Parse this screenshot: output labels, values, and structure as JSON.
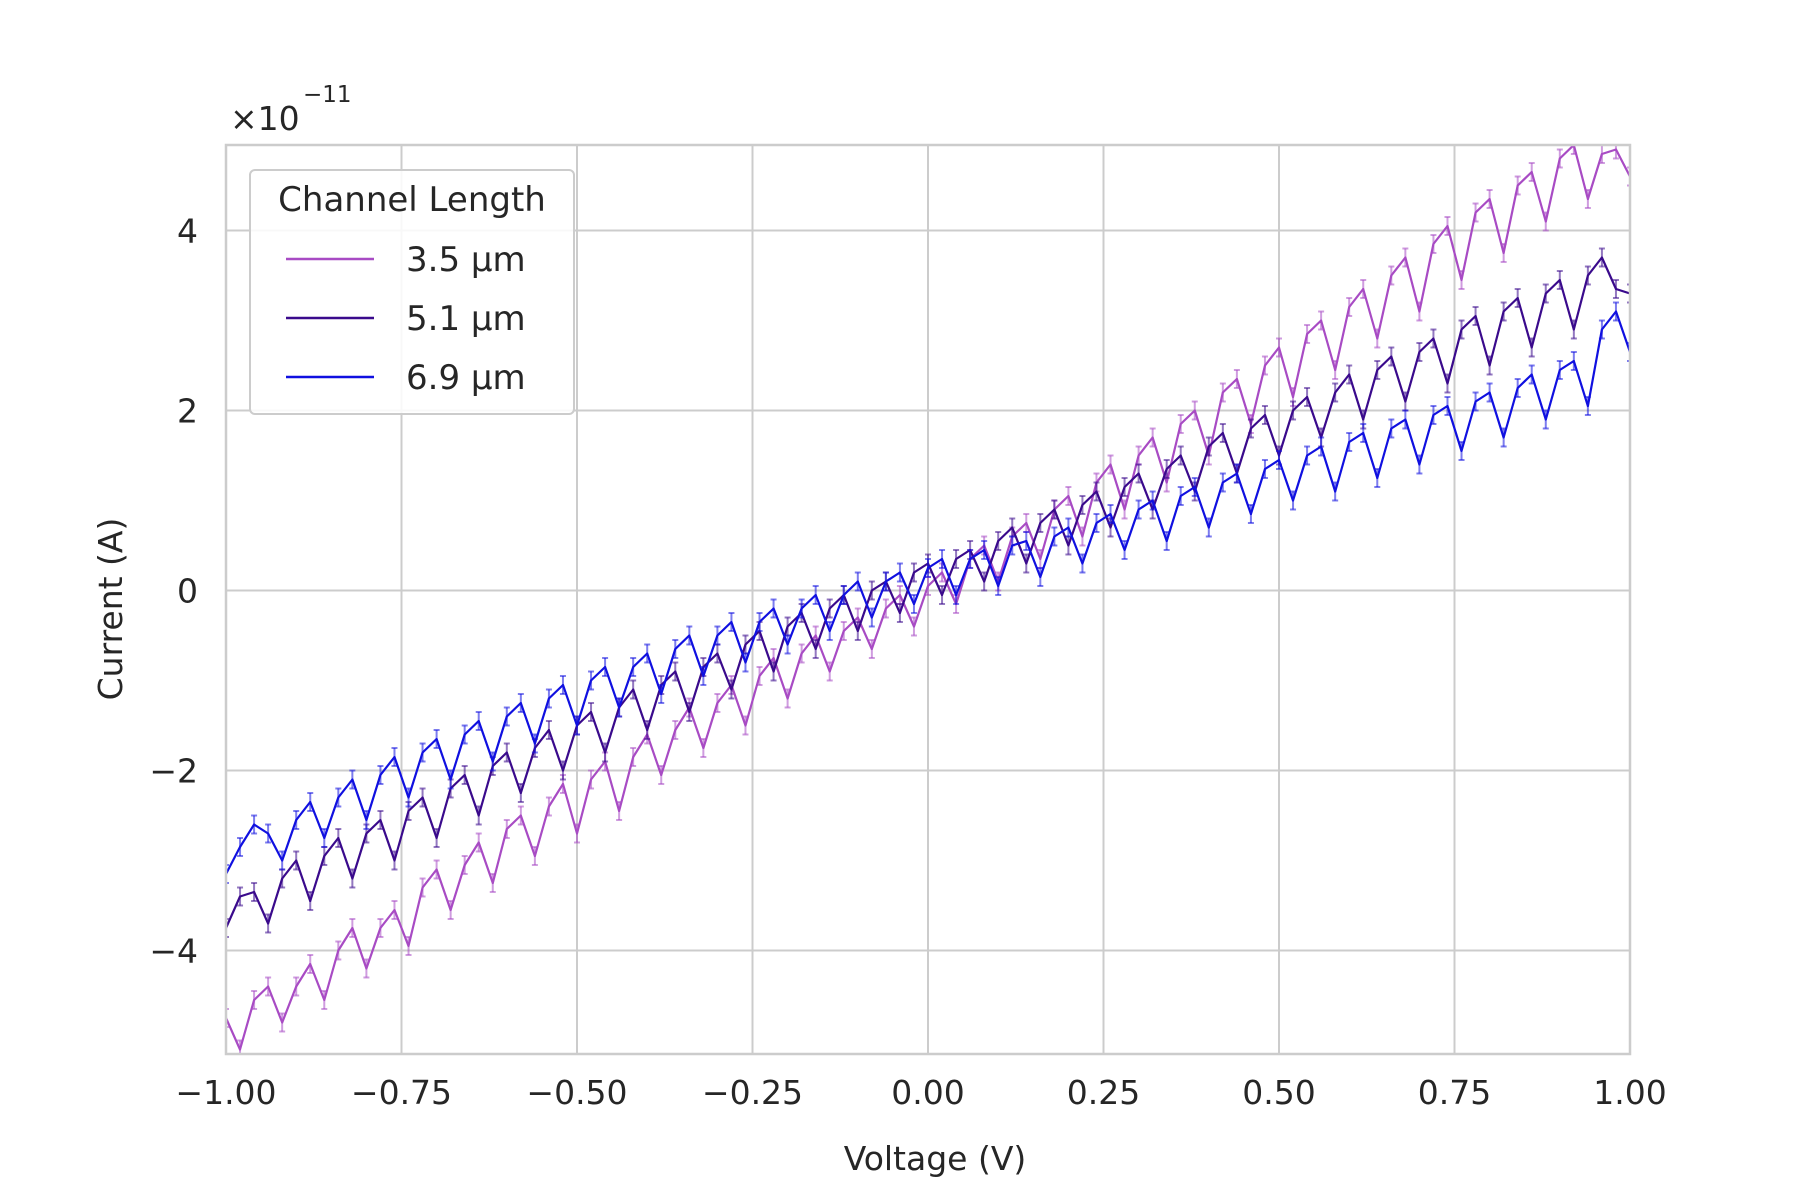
{
  "chart_data": {
    "type": "line",
    "xlabel": "Voltage (V)",
    "ylabel": "Current (A)",
    "xlim": [
      -1.0,
      1.0
    ],
    "ylim": [
      -5.15,
      4.95
    ],
    "y_scale_label": "×10",
    "y_scale_exponent": "−11",
    "grid": true,
    "legend": {
      "title": "Channel Length",
      "placement": "top-left"
    },
    "x_ticks": [
      {
        "value": -1.0,
        "label": "−1.00"
      },
      {
        "value": -0.75,
        "label": "−0.75"
      },
      {
        "value": -0.5,
        "label": "−0.50"
      },
      {
        "value": -0.25,
        "label": "−0.25"
      },
      {
        "value": 0.0,
        "label": "0.00"
      },
      {
        "value": 0.25,
        "label": "0.25"
      },
      {
        "value": 0.5,
        "label": "0.50"
      },
      {
        "value": 0.75,
        "label": "0.75"
      },
      {
        "value": 1.0,
        "label": "1.00"
      }
    ],
    "y_ticks": [
      {
        "value": -4,
        "label": "−4"
      },
      {
        "value": -2,
        "label": "−2"
      },
      {
        "value": 0,
        "label": "0"
      },
      {
        "value": 2,
        "label": "2"
      },
      {
        "value": 4,
        "label": "4"
      }
    ],
    "series": [
      {
        "name": "3.5 μm",
        "color": "#a84bc4",
        "points": [
          [
            -1.0,
            -4.75
          ],
          [
            -0.98,
            -5.1
          ],
          [
            -0.96,
            -4.55
          ],
          [
            -0.94,
            -4.4
          ],
          [
            -0.92,
            -4.8
          ],
          [
            -0.9,
            -4.4
          ],
          [
            -0.88,
            -4.15
          ],
          [
            -0.86,
            -4.55
          ],
          [
            -0.84,
            -4.0
          ],
          [
            -0.82,
            -3.75
          ],
          [
            -0.8,
            -4.2
          ],
          [
            -0.78,
            -3.75
          ],
          [
            -0.76,
            -3.55
          ],
          [
            -0.74,
            -3.95
          ],
          [
            -0.72,
            -3.3
          ],
          [
            -0.7,
            -3.1
          ],
          [
            -0.68,
            -3.55
          ],
          [
            -0.66,
            -3.05
          ],
          [
            -0.64,
            -2.8
          ],
          [
            -0.62,
            -3.25
          ],
          [
            -0.6,
            -2.65
          ],
          [
            -0.58,
            -2.5
          ],
          [
            -0.56,
            -2.95
          ],
          [
            -0.54,
            -2.4
          ],
          [
            -0.52,
            -2.15
          ],
          [
            -0.5,
            -2.7
          ],
          [
            -0.48,
            -2.1
          ],
          [
            -0.46,
            -1.9
          ],
          [
            -0.44,
            -2.45
          ],
          [
            -0.42,
            -1.85
          ],
          [
            -0.4,
            -1.6
          ],
          [
            -0.38,
            -2.05
          ],
          [
            -0.36,
            -1.55
          ],
          [
            -0.34,
            -1.3
          ],
          [
            -0.32,
            -1.75
          ],
          [
            -0.3,
            -1.25
          ],
          [
            -0.28,
            -1.05
          ],
          [
            -0.26,
            -1.5
          ],
          [
            -0.24,
            -0.95
          ],
          [
            -0.22,
            -0.75
          ],
          [
            -0.2,
            -1.2
          ],
          [
            -0.18,
            -0.7
          ],
          [
            -0.16,
            -0.5
          ],
          [
            -0.14,
            -0.9
          ],
          [
            -0.12,
            -0.45
          ],
          [
            -0.1,
            -0.3
          ],
          [
            -0.08,
            -0.65
          ],
          [
            -0.06,
            -0.2
          ],
          [
            -0.04,
            -0.05
          ],
          [
            -0.02,
            -0.4
          ],
          [
            0.0,
            0.05
          ],
          [
            0.02,
            0.2
          ],
          [
            0.04,
            -0.15
          ],
          [
            0.06,
            0.35
          ],
          [
            0.08,
            0.5
          ],
          [
            0.1,
            0.1
          ],
          [
            0.12,
            0.6
          ],
          [
            0.14,
            0.75
          ],
          [
            0.16,
            0.35
          ],
          [
            0.18,
            0.9
          ],
          [
            0.2,
            1.05
          ],
          [
            0.22,
            0.6
          ],
          [
            0.24,
            1.2
          ],
          [
            0.26,
            1.4
          ],
          [
            0.28,
            0.9
          ],
          [
            0.3,
            1.5
          ],
          [
            0.32,
            1.7
          ],
          [
            0.34,
            1.2
          ],
          [
            0.36,
            1.85
          ],
          [
            0.38,
            2.0
          ],
          [
            0.4,
            1.5
          ],
          [
            0.42,
            2.2
          ],
          [
            0.44,
            2.35
          ],
          [
            0.46,
            1.85
          ],
          [
            0.48,
            2.5
          ],
          [
            0.5,
            2.7
          ],
          [
            0.52,
            2.15
          ],
          [
            0.54,
            2.85
          ],
          [
            0.56,
            3.0
          ],
          [
            0.58,
            2.45
          ],
          [
            0.6,
            3.15
          ],
          [
            0.62,
            3.35
          ],
          [
            0.64,
            2.8
          ],
          [
            0.66,
            3.5
          ],
          [
            0.68,
            3.7
          ],
          [
            0.7,
            3.1
          ],
          [
            0.72,
            3.85
          ],
          [
            0.74,
            4.05
          ],
          [
            0.76,
            3.45
          ],
          [
            0.78,
            4.2
          ],
          [
            0.8,
            4.35
          ],
          [
            0.82,
            3.75
          ],
          [
            0.84,
            4.5
          ],
          [
            0.86,
            4.65
          ],
          [
            0.88,
            4.1
          ],
          [
            0.9,
            4.8
          ],
          [
            0.92,
            4.95
          ],
          [
            0.94,
            4.35
          ],
          [
            0.96,
            4.85
          ],
          [
            0.98,
            4.9
          ],
          [
            1.0,
            4.6
          ]
        ]
      },
      {
        "name": "5.1 μm",
        "color": "#3a0a8c",
        "points": [
          [
            -1.0,
            -3.75
          ],
          [
            -0.98,
            -3.4
          ],
          [
            -0.96,
            -3.35
          ],
          [
            -0.94,
            -3.7
          ],
          [
            -0.92,
            -3.2
          ],
          [
            -0.9,
            -3.0
          ],
          [
            -0.88,
            -3.45
          ],
          [
            -0.86,
            -2.95
          ],
          [
            -0.84,
            -2.75
          ],
          [
            -0.82,
            -3.2
          ],
          [
            -0.8,
            -2.7
          ],
          [
            -0.78,
            -2.55
          ],
          [
            -0.76,
            -3.0
          ],
          [
            -0.74,
            -2.45
          ],
          [
            -0.72,
            -2.3
          ],
          [
            -0.7,
            -2.75
          ],
          [
            -0.68,
            -2.2
          ],
          [
            -0.66,
            -2.05
          ],
          [
            -0.64,
            -2.5
          ],
          [
            -0.62,
            -1.95
          ],
          [
            -0.6,
            -1.8
          ],
          [
            -0.58,
            -2.25
          ],
          [
            -0.56,
            -1.75
          ],
          [
            -0.54,
            -1.55
          ],
          [
            -0.52,
            -2.0
          ],
          [
            -0.5,
            -1.5
          ],
          [
            -0.48,
            -1.35
          ],
          [
            -0.46,
            -1.8
          ],
          [
            -0.44,
            -1.3
          ],
          [
            -0.42,
            -1.1
          ],
          [
            -0.4,
            -1.55
          ],
          [
            -0.38,
            -1.05
          ],
          [
            -0.36,
            -0.9
          ],
          [
            -0.34,
            -1.35
          ],
          [
            -0.32,
            -0.85
          ],
          [
            -0.3,
            -0.7
          ],
          [
            -0.28,
            -1.1
          ],
          [
            -0.26,
            -0.6
          ],
          [
            -0.24,
            -0.45
          ],
          [
            -0.22,
            -0.9
          ],
          [
            -0.2,
            -0.4
          ],
          [
            -0.18,
            -0.25
          ],
          [
            -0.16,
            -0.65
          ],
          [
            -0.14,
            -0.2
          ],
          [
            -0.12,
            -0.05
          ],
          [
            -0.1,
            -0.45
          ],
          [
            -0.08,
            0.0
          ],
          [
            -0.06,
            0.1
          ],
          [
            -0.04,
            -0.25
          ],
          [
            -0.02,
            0.2
          ],
          [
            0.0,
            0.3
          ],
          [
            0.02,
            -0.05
          ],
          [
            0.04,
            0.35
          ],
          [
            0.06,
            0.45
          ],
          [
            0.08,
            0.1
          ],
          [
            0.1,
            0.55
          ],
          [
            0.12,
            0.7
          ],
          [
            0.14,
            0.3
          ],
          [
            0.16,
            0.75
          ],
          [
            0.18,
            0.9
          ],
          [
            0.2,
            0.5
          ],
          [
            0.22,
            0.95
          ],
          [
            0.24,
            1.1
          ],
          [
            0.26,
            0.7
          ],
          [
            0.28,
            1.15
          ],
          [
            0.3,
            1.3
          ],
          [
            0.32,
            0.9
          ],
          [
            0.34,
            1.35
          ],
          [
            0.36,
            1.5
          ],
          [
            0.38,
            1.1
          ],
          [
            0.4,
            1.6
          ],
          [
            0.42,
            1.75
          ],
          [
            0.44,
            1.3
          ],
          [
            0.46,
            1.8
          ],
          [
            0.48,
            1.95
          ],
          [
            0.5,
            1.5
          ],
          [
            0.52,
            2.0
          ],
          [
            0.54,
            2.15
          ],
          [
            0.56,
            1.7
          ],
          [
            0.58,
            2.2
          ],
          [
            0.6,
            2.4
          ],
          [
            0.62,
            1.9
          ],
          [
            0.64,
            2.45
          ],
          [
            0.66,
            2.6
          ],
          [
            0.68,
            2.1
          ],
          [
            0.7,
            2.65
          ],
          [
            0.72,
            2.8
          ],
          [
            0.74,
            2.3
          ],
          [
            0.76,
            2.9
          ],
          [
            0.78,
            3.05
          ],
          [
            0.8,
            2.5
          ],
          [
            0.82,
            3.1
          ],
          [
            0.84,
            3.25
          ],
          [
            0.86,
            2.7
          ],
          [
            0.88,
            3.3
          ],
          [
            0.9,
            3.45
          ],
          [
            0.92,
            2.9
          ],
          [
            0.94,
            3.5
          ],
          [
            0.96,
            3.7
          ],
          [
            0.98,
            3.35
          ],
          [
            1.0,
            3.3
          ]
        ]
      },
      {
        "name": "6.9 μm",
        "color": "#1010e0",
        "points": [
          [
            -1.0,
            -3.15
          ],
          [
            -0.98,
            -2.85
          ],
          [
            -0.96,
            -2.6
          ],
          [
            -0.94,
            -2.7
          ],
          [
            -0.92,
            -3.0
          ],
          [
            -0.9,
            -2.55
          ],
          [
            -0.88,
            -2.35
          ],
          [
            -0.86,
            -2.75
          ],
          [
            -0.84,
            -2.3
          ],
          [
            -0.82,
            -2.1
          ],
          [
            -0.8,
            -2.55
          ],
          [
            -0.78,
            -2.05
          ],
          [
            -0.76,
            -1.85
          ],
          [
            -0.74,
            -2.3
          ],
          [
            -0.72,
            -1.8
          ],
          [
            -0.7,
            -1.65
          ],
          [
            -0.68,
            -2.1
          ],
          [
            -0.66,
            -1.6
          ],
          [
            -0.64,
            -1.45
          ],
          [
            -0.62,
            -1.9
          ],
          [
            -0.6,
            -1.4
          ],
          [
            -0.58,
            -1.25
          ],
          [
            -0.56,
            -1.7
          ],
          [
            -0.54,
            -1.2
          ],
          [
            -0.52,
            -1.05
          ],
          [
            -0.5,
            -1.5
          ],
          [
            -0.48,
            -1.0
          ],
          [
            -0.46,
            -0.85
          ],
          [
            -0.44,
            -1.3
          ],
          [
            -0.42,
            -0.85
          ],
          [
            -0.4,
            -0.7
          ],
          [
            -0.38,
            -1.15
          ],
          [
            -0.36,
            -0.65
          ],
          [
            -0.34,
            -0.5
          ],
          [
            -0.32,
            -0.95
          ],
          [
            -0.3,
            -0.5
          ],
          [
            -0.28,
            -0.35
          ],
          [
            -0.26,
            -0.8
          ],
          [
            -0.24,
            -0.35
          ],
          [
            -0.22,
            -0.2
          ],
          [
            -0.2,
            -0.6
          ],
          [
            -0.18,
            -0.2
          ],
          [
            -0.16,
            -0.05
          ],
          [
            -0.14,
            -0.45
          ],
          [
            -0.12,
            -0.05
          ],
          [
            -0.1,
            0.1
          ],
          [
            -0.08,
            -0.3
          ],
          [
            -0.06,
            0.1
          ],
          [
            -0.04,
            0.2
          ],
          [
            -0.02,
            -0.15
          ],
          [
            0.0,
            0.25
          ],
          [
            0.02,
            0.35
          ],
          [
            0.04,
            -0.05
          ],
          [
            0.06,
            0.35
          ],
          [
            0.08,
            0.45
          ],
          [
            0.1,
            0.05
          ],
          [
            0.12,
            0.5
          ],
          [
            0.14,
            0.55
          ],
          [
            0.16,
            0.15
          ],
          [
            0.18,
            0.6
          ],
          [
            0.2,
            0.7
          ],
          [
            0.22,
            0.3
          ],
          [
            0.24,
            0.75
          ],
          [
            0.26,
            0.85
          ],
          [
            0.28,
            0.45
          ],
          [
            0.3,
            0.9
          ],
          [
            0.32,
            1.0
          ],
          [
            0.34,
            0.55
          ],
          [
            0.36,
            1.05
          ],
          [
            0.38,
            1.15
          ],
          [
            0.4,
            0.7
          ],
          [
            0.42,
            1.2
          ],
          [
            0.44,
            1.3
          ],
          [
            0.46,
            0.85
          ],
          [
            0.48,
            1.35
          ],
          [
            0.5,
            1.45
          ],
          [
            0.52,
            1.0
          ],
          [
            0.54,
            1.5
          ],
          [
            0.56,
            1.6
          ],
          [
            0.58,
            1.1
          ],
          [
            0.6,
            1.65
          ],
          [
            0.62,
            1.75
          ],
          [
            0.64,
            1.25
          ],
          [
            0.66,
            1.8
          ],
          [
            0.68,
            1.9
          ],
          [
            0.7,
            1.4
          ],
          [
            0.72,
            1.95
          ],
          [
            0.74,
            2.05
          ],
          [
            0.76,
            1.55
          ],
          [
            0.78,
            2.1
          ],
          [
            0.8,
            2.2
          ],
          [
            0.82,
            1.7
          ],
          [
            0.84,
            2.25
          ],
          [
            0.86,
            2.4
          ],
          [
            0.88,
            1.9
          ],
          [
            0.9,
            2.45
          ],
          [
            0.92,
            2.55
          ],
          [
            0.94,
            2.05
          ],
          [
            0.96,
            2.9
          ],
          [
            0.98,
            3.1
          ],
          [
            1.0,
            2.65
          ]
        ]
      }
    ]
  }
}
